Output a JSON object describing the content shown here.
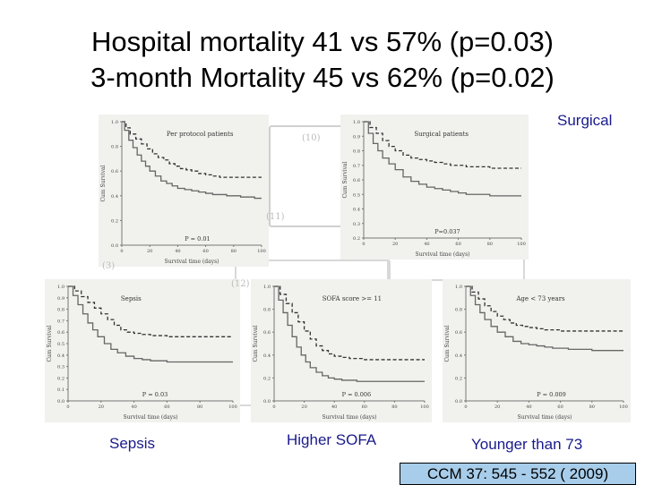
{
  "title_line1": "Hospital mortality 41 vs 57% (p=0.03)",
  "title_line2": "3-month Mortality 45 vs 62% (p=0.02)",
  "labels": {
    "surgical": "Surgical",
    "sepsis": "Sepsis",
    "higher_sofa": "Higher SOFA",
    "younger": "Younger than 73"
  },
  "citation": "CCM 37: 545 - 552 ( 2009)",
  "annotations": {
    "n1": "(10)",
    "n2": "(11)",
    "n3": "(3)",
    "n4": "(12)"
  },
  "chart_data": [
    {
      "id": "per-protocol",
      "type": "line",
      "title": "Per protocol patients",
      "xlabel": "Survival time (days)",
      "ylabel": "Cum Survival",
      "xlim": [
        0,
        100
      ],
      "ylim": [
        0.0,
        1.0
      ],
      "xticks": [
        0,
        20,
        40,
        60,
        80,
        100
      ],
      "yticks": [
        0.0,
        0.2,
        0.4,
        0.6,
        0.8,
        1.0
      ],
      "annotation": "P = 0.01",
      "series": [
        {
          "name": "upper",
          "style": "dashed",
          "x": [
            0,
            3,
            6,
            10,
            14,
            18,
            22,
            26,
            30,
            34,
            38,
            42,
            46,
            50,
            55,
            60,
            65,
            70,
            75,
            80,
            85,
            90,
            95,
            100
          ],
          "y": [
            1.0,
            0.95,
            0.9,
            0.86,
            0.82,
            0.78,
            0.74,
            0.71,
            0.69,
            0.66,
            0.64,
            0.62,
            0.61,
            0.6,
            0.58,
            0.57,
            0.56,
            0.55,
            0.55,
            0.55,
            0.55,
            0.55,
            0.55,
            0.55
          ]
        },
        {
          "name": "lower",
          "style": "solid",
          "x": [
            0,
            2,
            5,
            8,
            11,
            14,
            17,
            20,
            24,
            28,
            32,
            36,
            40,
            45,
            50,
            55,
            60,
            65,
            70,
            75,
            80,
            85,
            90,
            95,
            100
          ],
          "y": [
            1.0,
            0.93,
            0.85,
            0.79,
            0.73,
            0.68,
            0.64,
            0.6,
            0.56,
            0.52,
            0.5,
            0.48,
            0.46,
            0.45,
            0.44,
            0.43,
            0.42,
            0.41,
            0.41,
            0.4,
            0.4,
            0.39,
            0.39,
            0.38,
            0.38
          ]
        }
      ]
    },
    {
      "id": "surgical",
      "type": "line",
      "title": "Surgical patients",
      "xlabel": "Survival time (days)",
      "ylabel": "Cum Survival",
      "xlim": [
        0,
        100
      ],
      "ylim": [
        0.2,
        1.0
      ],
      "xticks": [
        0,
        20,
        40,
        60,
        80,
        100
      ],
      "yticks": [
        0.2,
        0.3,
        0.4,
        0.5,
        0.6,
        0.7,
        0.8,
        0.9,
        1.0
      ],
      "annotation": "P=0.037",
      "series": [
        {
          "name": "upper",
          "style": "dashed",
          "x": [
            0,
            4,
            8,
            12,
            16,
            20,
            25,
            30,
            35,
            40,
            45,
            50,
            55,
            60,
            65,
            70,
            75,
            80,
            85,
            90,
            95,
            100
          ],
          "y": [
            1.0,
            0.96,
            0.92,
            0.87,
            0.83,
            0.8,
            0.77,
            0.75,
            0.74,
            0.73,
            0.72,
            0.71,
            0.7,
            0.7,
            0.69,
            0.69,
            0.69,
            0.68,
            0.68,
            0.68,
            0.68,
            0.68
          ]
        },
        {
          "name": "lower",
          "style": "solid",
          "x": [
            0,
            3,
            6,
            9,
            12,
            16,
            20,
            25,
            30,
            35,
            40,
            45,
            50,
            55,
            60,
            65,
            70,
            75,
            80,
            85,
            90,
            95,
            100
          ],
          "y": [
            1.0,
            0.92,
            0.85,
            0.8,
            0.75,
            0.71,
            0.67,
            0.62,
            0.59,
            0.57,
            0.55,
            0.54,
            0.53,
            0.52,
            0.51,
            0.5,
            0.5,
            0.5,
            0.49,
            0.49,
            0.49,
            0.49,
            0.49
          ]
        }
      ]
    },
    {
      "id": "sepsis",
      "type": "line",
      "title": "Sepsis",
      "xlabel": "Survival time (days)",
      "ylabel": "Cum Survival",
      "xlim": [
        0,
        100
      ],
      "ylim": [
        0.0,
        1.0
      ],
      "xticks": [
        0,
        20,
        40,
        60,
        80,
        100
      ],
      "yticks": [
        0.0,
        0.1,
        0.2,
        0.3,
        0.4,
        0.5,
        0.6,
        0.7,
        0.8,
        0.9,
        1.0
      ],
      "annotation": "P = 0.03",
      "series": [
        {
          "name": "upper",
          "style": "dashed",
          "x": [
            0,
            4,
            8,
            12,
            16,
            20,
            24,
            28,
            32,
            36,
            40,
            45,
            50,
            55,
            60,
            65,
            70,
            75,
            80,
            85,
            90,
            95,
            100
          ],
          "y": [
            1.0,
            0.96,
            0.91,
            0.86,
            0.81,
            0.76,
            0.71,
            0.66,
            0.62,
            0.6,
            0.59,
            0.58,
            0.57,
            0.57,
            0.56,
            0.56,
            0.56,
            0.56,
            0.56,
            0.56,
            0.56,
            0.56,
            0.56
          ]
        },
        {
          "name": "lower",
          "style": "solid",
          "x": [
            0,
            3,
            6,
            9,
            12,
            15,
            18,
            22,
            26,
            30,
            35,
            40,
            45,
            50,
            55,
            60,
            65,
            70,
            75,
            80,
            85,
            90,
            95,
            100
          ],
          "y": [
            1.0,
            0.92,
            0.84,
            0.76,
            0.68,
            0.62,
            0.56,
            0.5,
            0.45,
            0.42,
            0.39,
            0.37,
            0.36,
            0.35,
            0.35,
            0.34,
            0.34,
            0.34,
            0.34,
            0.34,
            0.34,
            0.34,
            0.34,
            0.34
          ]
        }
      ]
    },
    {
      "id": "sofa",
      "type": "line",
      "title": "SOFA score >= 11",
      "xlabel": "Survival time (days)",
      "ylabel": "Cum Survival",
      "xlim": [
        0,
        100
      ],
      "ylim": [
        0.0,
        1.0
      ],
      "xticks": [
        0,
        20,
        40,
        60,
        80,
        100
      ],
      "yticks": [
        0.0,
        0.2,
        0.4,
        0.6,
        0.8,
        1.0
      ],
      "annotation": "P = 0.006",
      "series": [
        {
          "name": "upper",
          "style": "dashed",
          "x": [
            0,
            4,
            8,
            12,
            16,
            20,
            24,
            28,
            32,
            36,
            40,
            45,
            50,
            55,
            60,
            65,
            70,
            75,
            80,
            85,
            90,
            95,
            100
          ],
          "y": [
            1.0,
            0.93,
            0.85,
            0.77,
            0.69,
            0.61,
            0.54,
            0.48,
            0.44,
            0.41,
            0.39,
            0.38,
            0.37,
            0.37,
            0.36,
            0.36,
            0.36,
            0.36,
            0.36,
            0.36,
            0.36,
            0.36,
            0.36
          ]
        },
        {
          "name": "lower",
          "style": "solid",
          "x": [
            0,
            3,
            6,
            9,
            12,
            15,
            18,
            21,
            24,
            28,
            32,
            36,
            40,
            45,
            50,
            55,
            60,
            65,
            70,
            75,
            80,
            85,
            90,
            95,
            100
          ],
          "y": [
            1.0,
            0.88,
            0.77,
            0.66,
            0.56,
            0.47,
            0.4,
            0.34,
            0.29,
            0.25,
            0.22,
            0.2,
            0.19,
            0.18,
            0.18,
            0.17,
            0.17,
            0.17,
            0.17,
            0.17,
            0.17,
            0.17,
            0.17,
            0.17,
            0.17
          ]
        }
      ]
    },
    {
      "id": "age",
      "type": "line",
      "title": "Age < 73 years",
      "xlabel": "Survival time (days)",
      "ylabel": "Cum Survival",
      "xlim": [
        0,
        100
      ],
      "ylim": [
        0.0,
        1.0
      ],
      "xticks": [
        0,
        20,
        40,
        60,
        80,
        100
      ],
      "yticks": [
        0.0,
        0.2,
        0.4,
        0.6,
        0.8,
        1.0
      ],
      "annotation": "P = 0.009",
      "series": [
        {
          "name": "upper",
          "style": "dashed",
          "x": [
            0,
            4,
            8,
            12,
            16,
            20,
            24,
            28,
            32,
            36,
            40,
            45,
            50,
            55,
            60,
            65,
            70,
            75,
            80,
            85,
            90,
            95,
            100
          ],
          "y": [
            1.0,
            0.95,
            0.89,
            0.83,
            0.78,
            0.74,
            0.71,
            0.68,
            0.66,
            0.65,
            0.64,
            0.63,
            0.62,
            0.62,
            0.61,
            0.61,
            0.61,
            0.61,
            0.61,
            0.61,
            0.61,
            0.61,
            0.61
          ]
        },
        {
          "name": "lower",
          "style": "solid",
          "x": [
            0,
            3,
            6,
            9,
            12,
            16,
            20,
            25,
            30,
            35,
            40,
            45,
            50,
            55,
            60,
            65,
            70,
            75,
            80,
            85,
            90,
            95,
            100
          ],
          "y": [
            1.0,
            0.92,
            0.84,
            0.77,
            0.71,
            0.65,
            0.6,
            0.56,
            0.52,
            0.5,
            0.49,
            0.48,
            0.47,
            0.46,
            0.46,
            0.45,
            0.45,
            0.45,
            0.44,
            0.44,
            0.44,
            0.44,
            0.44
          ]
        }
      ]
    }
  ]
}
